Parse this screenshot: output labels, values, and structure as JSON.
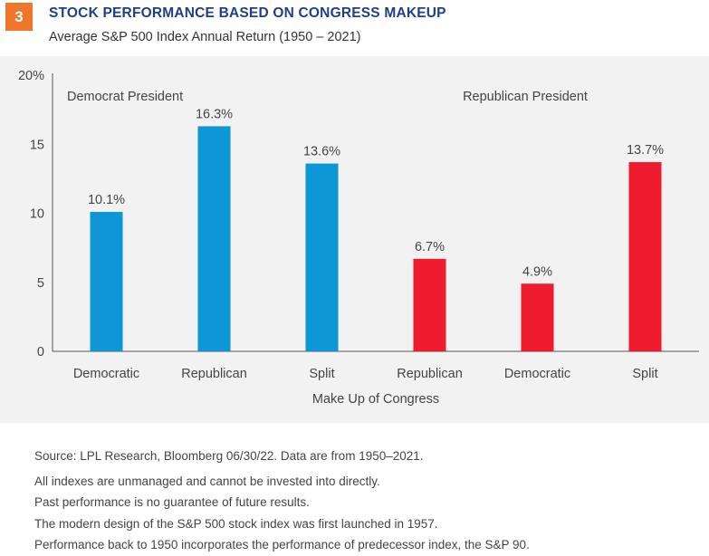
{
  "header": {
    "badge_number": "3",
    "title": "STOCK PERFORMANCE BASED ON CONGRESS MAKEUP",
    "subtitle": "Average S&P 500 Index Annual Return (1950 – 2021)"
  },
  "colors": {
    "accent_badge": "#f0762b",
    "title": "#1f3f8a",
    "democrat_bar": "#0e97d6",
    "republican_bar": "#ee1c2e",
    "panel_background": "#f2f2f2"
  },
  "chart_data": {
    "type": "bar",
    "title": "",
    "xlabel": "Make Up of Congress",
    "ylabel": "",
    "ylim": [
      0,
      20
    ],
    "y_ticks": [
      "0",
      "5",
      "10",
      "15",
      "20%"
    ],
    "y_tick_values": [
      0,
      5,
      10,
      15,
      20
    ],
    "grid": false,
    "groups": [
      {
        "label": "Democrat President",
        "color": "#0e97d6"
      },
      {
        "label": "Republican President",
        "color": "#ee1c2e"
      }
    ],
    "categories": [
      "Democratic",
      "Republican",
      "Split",
      "Republican",
      "Democratic",
      "Split"
    ],
    "values": [
      10.1,
      16.3,
      13.6,
      6.7,
      4.9,
      13.7
    ],
    "value_labels": [
      "10.1%",
      "16.3%",
      "13.6%",
      "6.7%",
      "4.9%",
      "13.7%"
    ],
    "bar_group": [
      0,
      0,
      0,
      1,
      1,
      1
    ]
  },
  "notes": {
    "source": "Source: LPL Research, Bloomberg  06/30/22.  Data are from 1950–2021.",
    "lines": [
      "All indexes are unmanaged and cannot be invested into directly.",
      "Past performance is no guarantee of future results.",
      "The modern design of the S&P 500 stock index was first launched in 1957.",
      "Performance back to 1950 incorporates the performance of predecessor index, the S&P 90."
    ]
  }
}
